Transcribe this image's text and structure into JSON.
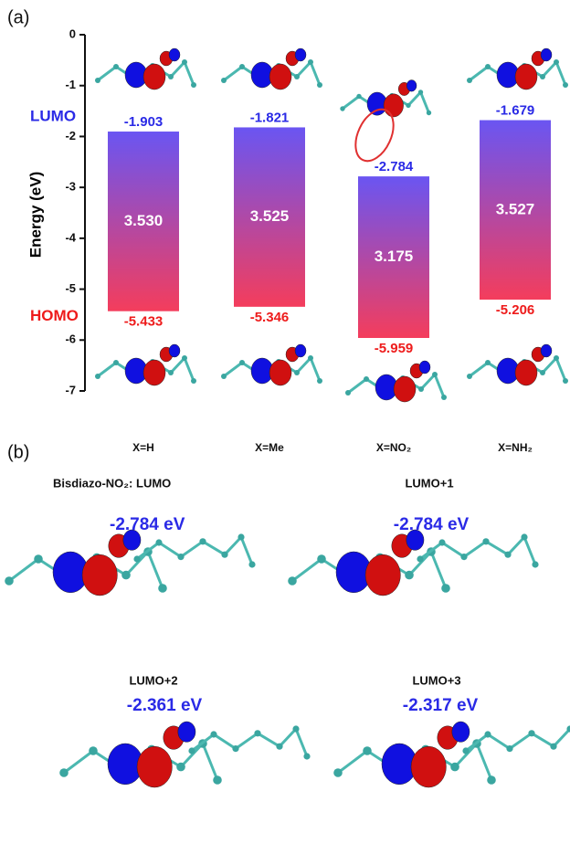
{
  "chart_data": {
    "type": "floating-bar",
    "label": "(a)",
    "y_label": "Energy (eV)",
    "categories": [
      "X=H",
      "X=Me",
      "X=NO₂",
      "X=NH₂"
    ],
    "series": [
      {
        "name": "LUMO",
        "color": "#2a2ae6",
        "values": [
          -1.903,
          -1.821,
          -2.784,
          -1.679
        ]
      },
      {
        "name": "HOMO",
        "color": "#ee1b1b",
        "values": [
          -5.433,
          -5.346,
          -5.959,
          -5.206
        ]
      }
    ],
    "gap": {
      "values": [
        3.53,
        3.525,
        3.175,
        3.527
      ],
      "value_labels": [
        "3.530",
        "3.525",
        "3.175",
        "3.527"
      ]
    },
    "ylim": [
      -7,
      0
    ],
    "yticks": [
      0,
      -1,
      -2,
      -3,
      -4,
      -5,
      -6,
      -7
    ]
  },
  "panel_b": {
    "label": "(b)",
    "subpanels": [
      {
        "title": "Bisdiazo-NO₂:  LUMO",
        "energy": "-2.784 eV"
      },
      {
        "title": "LUMO+1",
        "energy": "-2.784 eV"
      },
      {
        "title": "LUMO+2",
        "energy": "-2.361 eV"
      },
      {
        "title": "LUMO+3",
        "energy": "-2.317 eV"
      }
    ]
  }
}
